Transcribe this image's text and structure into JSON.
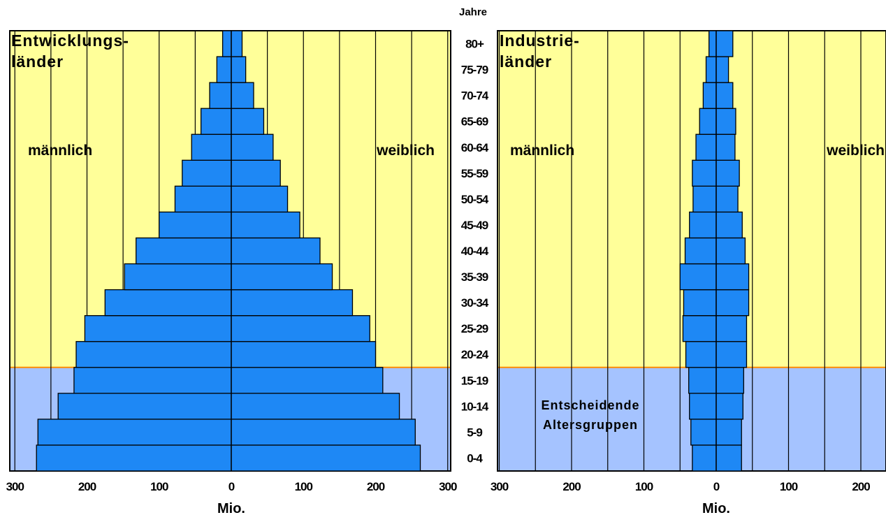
{
  "header": {
    "age_axis_title": "Jahre"
  },
  "age_groups": [
    "0-4",
    "5-9",
    "10-14",
    "15-19",
    "20-24",
    "25-29",
    "30-34",
    "35-39",
    "40-44",
    "45-49",
    "50-54",
    "55-59",
    "60-64",
    "65-69",
    "70-74",
    "75-79",
    "80+"
  ],
  "colors": {
    "bar": "#1e88f5",
    "upper_bg": "#ffff99",
    "lower_bg": "#a5c3ff",
    "divider": "#ff8c00"
  },
  "chart_data": [
    {
      "type": "bar",
      "orientation": "horizontal",
      "subtype": "population-pyramid",
      "title": "Entwicklungs-\nländer",
      "title_lines": [
        "Entwicklungs-",
        "länder"
      ],
      "left_label": "männlich",
      "right_label": "weiblich",
      "xlabel": "Mio.",
      "xlim": [
        -300,
        300
      ],
      "xticks": [
        -300,
        -200,
        -100,
        0,
        100,
        200,
        300
      ],
      "xtick_labels": [
        "300",
        "200",
        "100",
        "0",
        "100",
        "200",
        "300"
      ],
      "gridlines": [
        -300,
        -250,
        -200,
        -150,
        -100,
        -50,
        0,
        50,
        100,
        150,
        200,
        250,
        300
      ],
      "highlight_below_age_group": "15-19",
      "categories": [
        "0-4",
        "5-9",
        "10-14",
        "15-19",
        "20-24",
        "25-29",
        "30-34",
        "35-39",
        "40-44",
        "45-49",
        "50-54",
        "55-59",
        "60-64",
        "65-69",
        "70-74",
        "75-79",
        "80+"
      ],
      "series": [
        {
          "name": "männlich",
          "values": [
            270,
            268,
            240,
            218,
            215,
            203,
            175,
            148,
            132,
            100,
            78,
            68,
            55,
            42,
            30,
            20,
            12
          ]
        },
        {
          "name": "weiblich",
          "values": [
            262,
            255,
            233,
            210,
            200,
            192,
            168,
            140,
            123,
            95,
            78,
            68,
            58,
            45,
            31,
            20,
            15
          ]
        }
      ]
    },
    {
      "type": "bar",
      "orientation": "horizontal",
      "subtype": "population-pyramid",
      "title": "Industrie-\nländer",
      "title_lines": [
        "Industrie-",
        "länder"
      ],
      "left_label": "männlich",
      "right_label": "weiblich",
      "xlabel": "Mio.",
      "xlim": [
        -300,
        235
      ],
      "xticks": [
        -300,
        -200,
        -100,
        0,
        100,
        200
      ],
      "xtick_labels": [
        "300",
        "200",
        "100",
        "0",
        "100",
        "200"
      ],
      "gridlines": [
        -300,
        -250,
        -200,
        -150,
        -100,
        -50,
        0,
        50,
        100,
        150,
        200
      ],
      "highlight_below_age_group": "15-19",
      "annotation_lines": [
        "Entscheidende",
        "Altersgruppen"
      ],
      "categories": [
        "0-4",
        "5-9",
        "10-14",
        "15-19",
        "20-24",
        "25-29",
        "30-34",
        "35-39",
        "40-44",
        "45-49",
        "50-54",
        "55-59",
        "60-64",
        "65-69",
        "70-74",
        "75-79",
        "80+"
      ],
      "series": [
        {
          "name": "männlich",
          "values": [
            33,
            35,
            37,
            38,
            42,
            46,
            45,
            50,
            43,
            37,
            32,
            33,
            28,
            23,
            18,
            14,
            10
          ]
        },
        {
          "name": "weiblich",
          "values": [
            35,
            35,
            37,
            38,
            42,
            42,
            45,
            45,
            40,
            36,
            30,
            32,
            26,
            27,
            23,
            17,
            23
          ]
        }
      ]
    }
  ]
}
